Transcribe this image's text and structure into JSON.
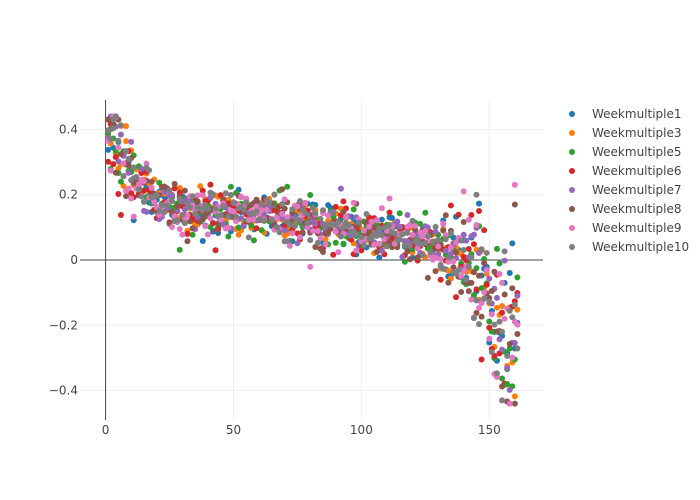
{
  "chart_data": {
    "type": "scatter",
    "title": "",
    "xlabel": "",
    "ylabel": "",
    "xlim": [
      -10,
      171
    ],
    "ylim": [
      -0.49,
      0.49
    ],
    "xticks": [
      0,
      50,
      100,
      150
    ],
    "yticks": [
      -0.4,
      -0.2,
      0,
      0.2,
      0.4
    ],
    "xtick_labels": [
      "0",
      "50",
      "100",
      "150"
    ],
    "ytick_labels": [
      "−0.4",
      "−0.2",
      "0",
      "0.2",
      "0.4"
    ],
    "grid": true,
    "legend_position": "top-right",
    "series": [
      {
        "name": "Weekmultiple1",
        "color": "#1f77b4"
      },
      {
        "name": "Weekmultiple3",
        "color": "#ff7f0e"
      },
      {
        "name": "Weekmultiple5",
        "color": "#2ca02c"
      },
      {
        "name": "Weekmultiple6",
        "color": "#d62728"
      },
      {
        "name": "Weekmultiple7",
        "color": "#9467bd"
      },
      {
        "name": "Weekmultiple8",
        "color": "#8c564b"
      },
      {
        "name": "Weekmultiple9",
        "color": "#e377c2"
      },
      {
        "name": "Weekmultiple10",
        "color": "#7f7f7f"
      }
    ],
    "trend_profile": {
      "x": [
        0,
        3,
        6,
        10,
        15,
        20,
        30,
        40,
        60,
        80,
        95,
        100,
        110,
        120,
        128,
        135,
        140,
        145,
        148,
        150,
        152,
        155,
        158,
        160
      ],
      "y": [
        0.35,
        0.37,
        0.32,
        0.26,
        0.22,
        0.18,
        0.15,
        0.15,
        0.14,
        0.12,
        0.1,
        0.08,
        0.08,
        0.06,
        0.04,
        0.02,
        0.0,
        -0.04,
        -0.08,
        -0.12,
        -0.17,
        -0.22,
        -0.22,
        -0.2
      ]
    },
    "spread": 0.035,
    "x_start": 1,
    "x_end": 161,
    "notable_points": [
      {
        "x": 155,
        "y": -0.43,
        "series": "Weekmultiple10"
      },
      {
        "x": 157,
        "y": -0.38,
        "series": "Weekmultiple5"
      },
      {
        "x": 160,
        "y": 0.23,
        "series": "Weekmultiple9"
      },
      {
        "x": 160,
        "y": 0.17,
        "series": "Weekmultiple8"
      },
      {
        "x": 140,
        "y": 0.21,
        "series": "Weekmultiple9"
      },
      {
        "x": 145,
        "y": 0.2,
        "series": "Weekmultiple10"
      },
      {
        "x": 3,
        "y": 0.43,
        "series": "Weekmultiple10"
      },
      {
        "x": 8,
        "y": 0.41,
        "series": "Weekmultiple3"
      }
    ]
  }
}
